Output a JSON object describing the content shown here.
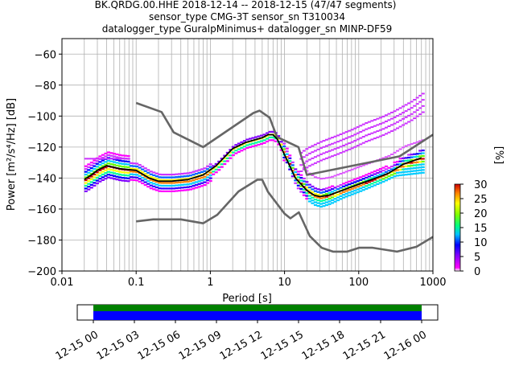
{
  "header": {
    "line1": "BK.QRDG.00.HHE   2018-12-14 -- 2018-12-15  (47/47 segments)",
    "line2": "sensor_type CMG-3T sensor_sn T310034",
    "line3": "datalogger_type GuralpMinimus+ datalogger_sn MINP-DF59"
  },
  "colorbar": {
    "label": "[%]",
    "ticks": [
      "0",
      "5",
      "10",
      "15",
      "20",
      "25",
      "30"
    ],
    "range": [
      0,
      30
    ]
  },
  "timeline": {
    "ticks": [
      "12-15 00",
      "12-15 03",
      "12-15 06",
      "12-15 09",
      "12-15 12",
      "12-15 15",
      "12-15 18",
      "12-15 21",
      "12-16 00"
    ],
    "coverage_colors": [
      "#008000",
      "#0000ff"
    ]
  },
  "chart_data": {
    "type": "heatmap",
    "xlabel": "Period [s]",
    "ylabel": "Power [m²/s⁴/Hz] [dB]",
    "x_scale": "log",
    "xlim": [
      0.01,
      1000
    ],
    "ylim": [
      -200,
      -50
    ],
    "x_ticks": [
      "0.01",
      "0.1",
      "1",
      "10",
      "100",
      "1000"
    ],
    "y_ticks": [
      "−200",
      "−180",
      "−160",
      "−140",
      "−120",
      "−100",
      "−80",
      "−60"
    ],
    "grid": true,
    "series": [
      {
        "role": "noise-model-high",
        "color": "#666666",
        "x": [
          0.1,
          0.22,
          0.32,
          0.8,
          3.8,
          4.6,
          6.3,
          7.9,
          15.4,
          20,
          354.8,
          1000
        ],
        "y": [
          -91.5,
          -97.4,
          -110.5,
          -120,
          -98,
          -96.5,
          -101,
          -113.5,
          -120,
          -138,
          -126,
          -112
        ]
      },
      {
        "role": "noise-model-low",
        "color": "#666666",
        "x": [
          0.1,
          0.17,
          0.4,
          0.8,
          1.24,
          2.4,
          4.3,
          5,
          6,
          10,
          12,
          15.6,
          21.9,
          31.6,
          45,
          70,
          101,
          154,
          328,
          600,
          1000
        ],
        "y": [
          -168,
          -166.7,
          -166.7,
          -169.2,
          -163.7,
          -148.6,
          -141.1,
          -141.1,
          -149,
          -163,
          -166,
          -162.1,
          -177.5,
          -185,
          -187.5,
          -187.5,
          -185,
          -185,
          -187.5,
          -184.4,
          -178
        ]
      },
      {
        "role": "mode",
        "color": "#000000",
        "x": [
          0.02,
          0.025,
          0.03,
          0.04,
          0.06,
          0.1,
          0.15,
          0.2,
          0.3,
          0.5,
          0.8,
          1.2,
          2,
          3,
          5,
          6,
          7,
          8,
          10,
          14,
          20,
          25,
          30,
          40,
          60,
          100,
          150,
          250,
          400,
          700
        ],
        "y": [
          -141,
          -138,
          -135,
          -132,
          -134,
          -135,
          -140,
          -142,
          -142,
          -141,
          -138,
          -132,
          -121,
          -117,
          -114,
          -112,
          -112,
          -115,
          -125,
          -140,
          -148,
          -151,
          -152,
          -151,
          -148,
          -144,
          -141,
          -137,
          -131,
          -127
        ]
      },
      {
        "role": "psd-upper-branch",
        "color": "#cc33ff",
        "x": [
          15,
          20,
          30,
          50,
          80,
          120,
          200,
          300,
          500,
          700
        ],
        "y": [
          -124,
          -120,
          -116,
          -112,
          -108,
          -104,
          -100,
          -96,
          -90,
          -85
        ]
      },
      {
        "role": "psd-lower-envelope",
        "color": "#00ff66",
        "x": [
          10,
          14,
          20,
          25,
          30,
          40,
          60,
          100,
          200,
          300,
          700
        ],
        "y": [
          -128,
          -145,
          -154,
          -157,
          -158,
          -156,
          -152,
          -148,
          -142,
          -138,
          -136
        ]
      }
    ]
  }
}
